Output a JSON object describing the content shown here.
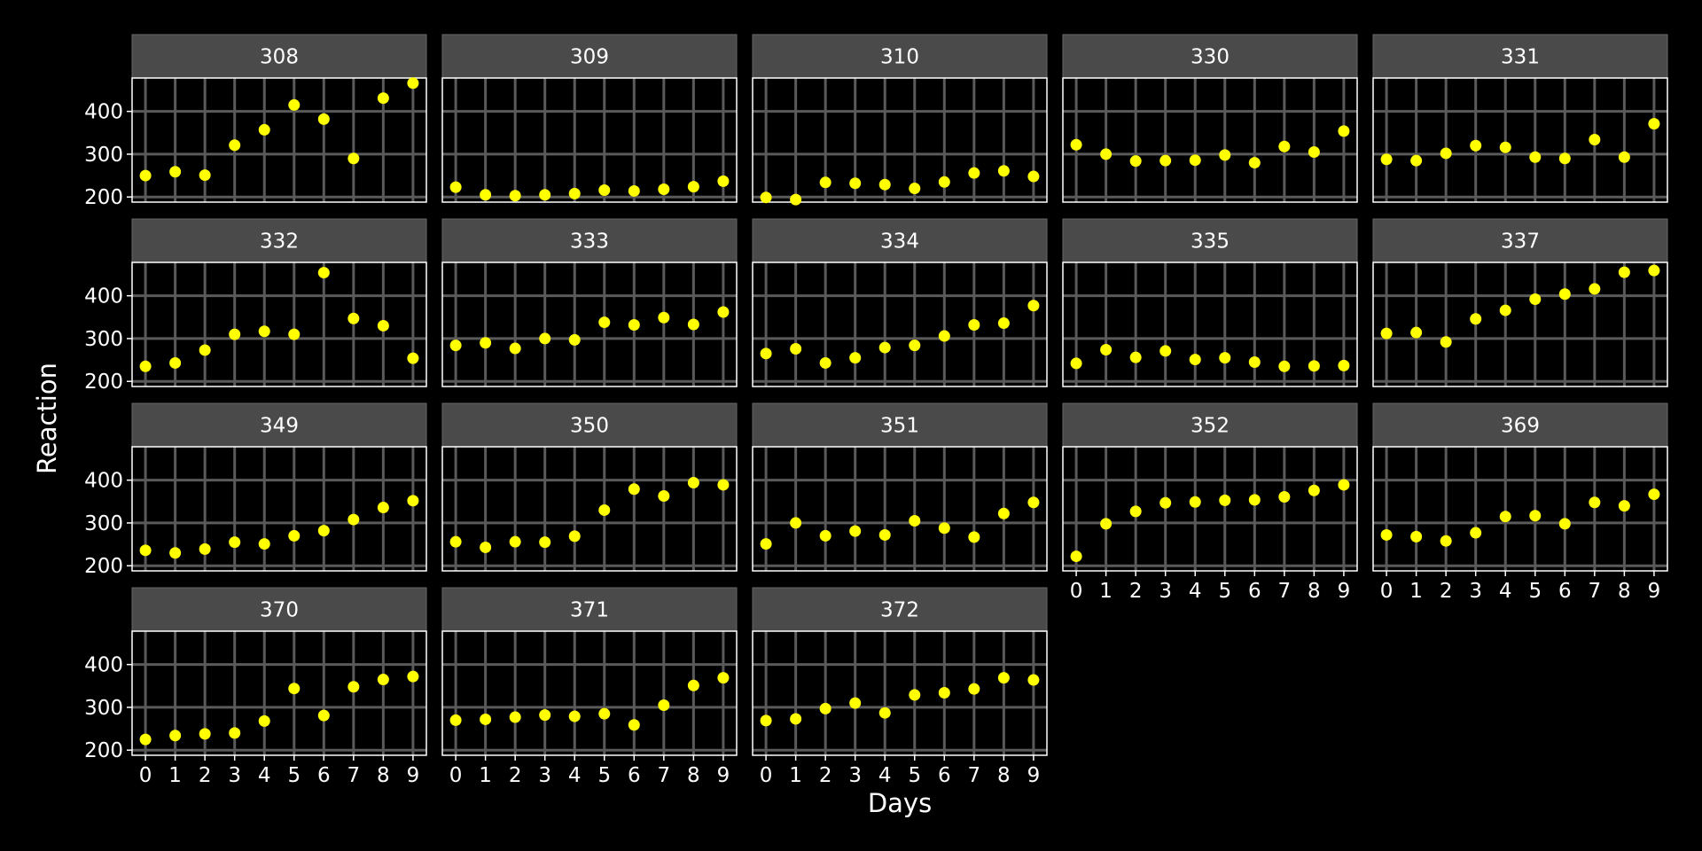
{
  "chart_data": {
    "type": "scatter",
    "facet_layout": "wrap",
    "xlabel": "Days",
    "ylabel": "Reaction",
    "x": [
      0,
      1,
      2,
      3,
      4,
      5,
      6,
      7,
      8,
      9
    ],
    "x_ticks": [
      0,
      1,
      2,
      3,
      4,
      5,
      6,
      7,
      8,
      9
    ],
    "y_ticks": [
      200,
      300,
      400
    ],
    "xlim": [
      -0.45,
      9.45
    ],
    "ylim": [
      188,
      478
    ],
    "grid": true,
    "colors": {
      "background": "#000000",
      "panel_background": "#000000",
      "panel_border": "#ffffff",
      "grid": "#5a5a5a",
      "strip_background": "#4a4a4a",
      "strip_border": "#666666",
      "text": "#ffffff",
      "point": "#ffff00"
    },
    "panels": [
      {
        "subject": "308",
        "values": [
          250,
          259,
          251,
          321,
          357,
          415,
          382,
          290,
          431,
          466
        ]
      },
      {
        "subject": "309",
        "values": [
          223,
          205,
          203,
          205,
          208,
          216,
          214,
          218,
          224,
          237
        ]
      },
      {
        "subject": "310",
        "values": [
          199,
          194,
          234,
          232,
          229,
          220,
          235,
          256,
          261,
          248
        ]
      },
      {
        "subject": "330",
        "values": [
          322,
          300,
          284,
          285,
          286,
          298,
          280,
          318,
          305,
          354
        ]
      },
      {
        "subject": "331",
        "values": [
          288,
          285,
          302,
          320,
          316,
          293,
          290,
          334,
          293,
          371
        ]
      },
      {
        "subject": "332",
        "values": [
          235,
          243,
          273,
          310,
          317,
          310,
          454,
          347,
          330,
          254
        ]
      },
      {
        "subject": "333",
        "values": [
          284,
          290,
          277,
          300,
          297,
          338,
          332,
          349,
          333,
          362
        ]
      },
      {
        "subject": "334",
        "values": [
          265,
          276,
          243,
          255,
          279,
          284,
          306,
          332,
          336,
          377
        ]
      },
      {
        "subject": "335",
        "values": [
          242,
          274,
          256,
          271,
          251,
          255,
          245,
          235,
          236,
          237
        ]
      },
      {
        "subject": "337",
        "values": [
          312,
          314,
          292,
          346,
          366,
          392,
          404,
          416,
          455,
          459
        ]
      },
      {
        "subject": "349",
        "values": [
          236,
          230,
          239,
          255,
          251,
          270,
          282,
          308,
          336,
          352
        ]
      },
      {
        "subject": "350",
        "values": [
          256,
          243,
          256,
          255,
          269,
          330,
          379,
          363,
          394,
          389
        ]
      },
      {
        "subject": "351",
        "values": [
          251,
          300,
          270,
          281,
          272,
          305,
          288,
          267,
          322,
          348
        ]
      },
      {
        "subject": "352",
        "values": [
          222,
          298,
          327,
          347,
          349,
          353,
          354,
          361,
          376,
          389
        ]
      },
      {
        "subject": "369",
        "values": [
          272,
          268,
          258,
          277,
          315,
          317,
          298,
          348,
          340,
          367
        ]
      },
      {
        "subject": "370",
        "values": [
          225,
          234,
          238,
          240,
          268,
          344,
          281,
          348,
          365,
          372
        ]
      },
      {
        "subject": "371",
        "values": [
          270,
          272,
          277,
          282,
          279,
          285,
          259,
          305,
          351,
          369
        ]
      },
      {
        "subject": "372",
        "values": [
          269,
          273,
          297,
          310,
          287,
          329,
          334,
          343,
          369,
          364
        ]
      }
    ]
  }
}
